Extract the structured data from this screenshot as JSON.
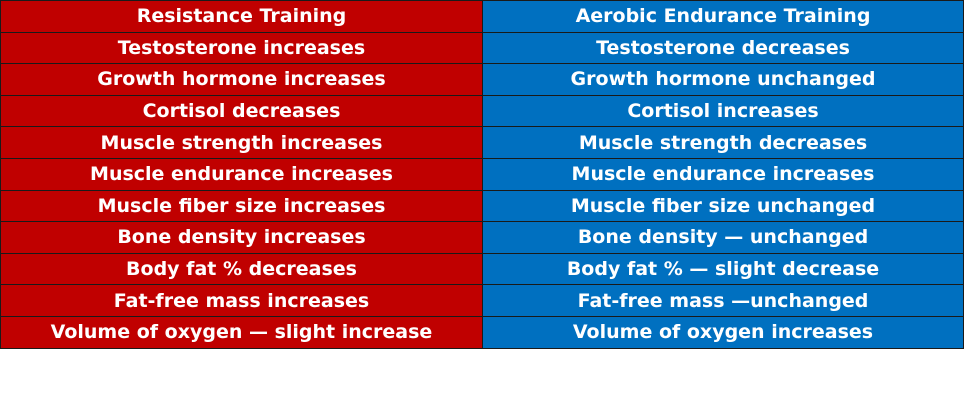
{
  "table": {
    "headers": {
      "left": "Resistance Training",
      "right": "Aerobic Endurance Training"
    },
    "rows": [
      {
        "left": "Testosterone increases",
        "right": "Testosterone decreases"
      },
      {
        "left": "Growth hormone increases",
        "right": "Growth hormone unchanged"
      },
      {
        "left": "Cortisol decreases",
        "right": "Cortisol increases"
      },
      {
        "left": "Muscle strength increases",
        "right": "Muscle strength decreases"
      },
      {
        "left": "Muscle endurance increases",
        "right": "Muscle endurance increases"
      },
      {
        "left": "Muscle fiber size increases",
        "right": "Muscle fiber size unchanged"
      },
      {
        "left": "Bone density increases",
        "right": "Bone density — unchanged"
      },
      {
        "left": "Body fat % decreases",
        "right": "Body fat % — slight decrease"
      },
      {
        "left": "Fat-free mass increases",
        "right": "Fat-free mass —unchanged"
      },
      {
        "left": "Volume of oxygen — slight increase",
        "right": "Volume of oxygen increases"
      }
    ]
  },
  "colors": {
    "resistance": "#c00000",
    "aerobic": "#0070c0",
    "text": "#ffffff"
  }
}
